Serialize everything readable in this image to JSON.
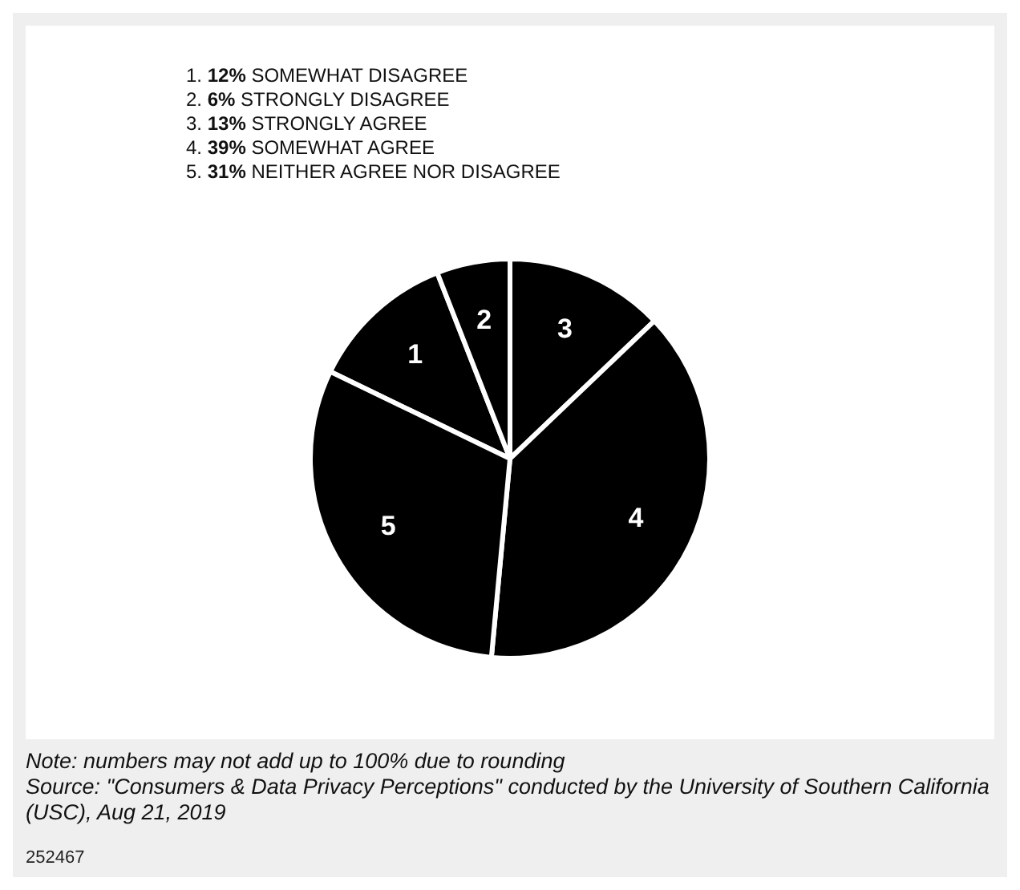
{
  "chart_data": {
    "type": "pie",
    "categories": [
      "1",
      "2",
      "3",
      "4",
      "5"
    ],
    "values": [
      12,
      6,
      13,
      39,
      31
    ],
    "colors": [
      "#000000",
      "#000000",
      "#000000",
      "#000000",
      "#000000"
    ],
    "annotations": [
      "1. 12% SOMEWHAT DISAGREE",
      "2. 6% STRONGLY DISAGREE",
      "3. 13% STRONGLY AGREE",
      "4. 39% SOMEWHAT AGREE",
      "5. 31% NEITHER AGREE NOR DISAGREE",
      "Note: numbers may not add up to 100% due to rounding",
      "Source: \"Consumers & Data Privacy Perceptions\" conducted by the University of Southern California (USC), Aug 21, 2019",
      "252467"
    ]
  }
}
